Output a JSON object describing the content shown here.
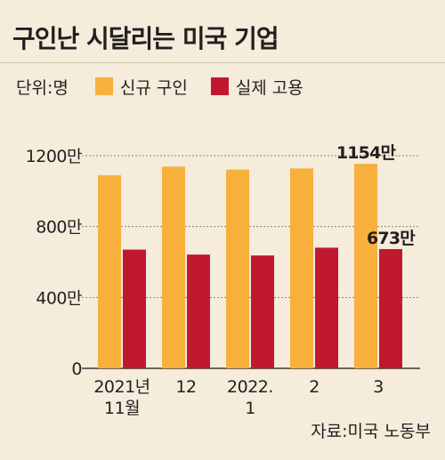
{
  "header": {
    "title": "구인난 시달리는 미국 기업"
  },
  "legend": {
    "unit": "단위:명",
    "entries": [
      {
        "label": "신규 구인",
        "color": "#f7b03c"
      },
      {
        "label": "실제 고용",
        "color": "#c0192f"
      }
    ]
  },
  "source": "자료:미국 노동부",
  "chart_data": {
    "type": "bar",
    "categories": [
      [
        "2021년",
        "11월"
      ],
      [
        "12"
      ],
      [
        "2022.",
        "1"
      ],
      [
        "2"
      ],
      [
        "3"
      ]
    ],
    "series": [
      {
        "name": "신규 구인",
        "values": [
          1090,
          1138,
          1122,
          1128,
          1154
        ],
        "color": "#f7b03c"
      },
      {
        "name": "실제 고용",
        "values": [
          670,
          642,
          637,
          681,
          673
        ],
        "color": "#c0192f"
      }
    ],
    "ylim": [
      0,
      1200
    ],
    "y_ticks": [
      {
        "value": 0,
        "label": "0"
      },
      {
        "value": 400,
        "label": "400만"
      },
      {
        "value": 800,
        "label": "800만"
      },
      {
        "value": 1200,
        "label": "1200만"
      }
    ],
    "grid": true,
    "annotations": [
      {
        "series": 0,
        "index": 4,
        "text": "1154만"
      },
      {
        "series": 1,
        "index": 4,
        "text": "673만"
      }
    ]
  }
}
